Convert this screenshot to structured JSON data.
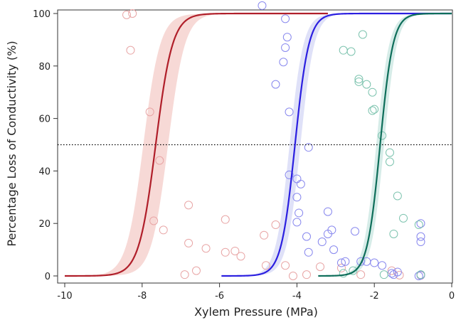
{
  "chart_data": {
    "type": "scatter",
    "title": "",
    "xlabel": "Xylem Pressure (MPa)",
    "ylabel": "Percentage Loss of Conductivity (%)",
    "xlim": [
      -10,
      0
    ],
    "ylim": [
      0,
      100
    ],
    "x_ticks": [
      -10,
      -8,
      -6,
      -4,
      -2,
      0
    ],
    "y_ticks": [
      0,
      20,
      40,
      60,
      80,
      100
    ],
    "grid": false,
    "legend": "none",
    "reference_line": {
      "y": 50,
      "style": "dotted",
      "color": "#000000"
    },
    "series": [
      {
        "color": "#b01f2a",
        "band_color": "#f6d2cf",
        "point_color": "#e8a5a5",
        "curve": {
          "x_start": -10,
          "x_end": -3.2,
          "p50": -7.65,
          "slope": 4.6
        },
        "band_width": 0.32,
        "points": [
          [
            -8.4,
            99.5
          ],
          [
            -8.25,
            100
          ],
          [
            -8.3,
            86
          ],
          [
            -7.8,
            62.5
          ],
          [
            -7.7,
            21
          ],
          [
            -7.55,
            44
          ],
          [
            -7.45,
            17.5
          ],
          [
            -6.9,
            0.5
          ],
          [
            -6.8,
            27
          ],
          [
            -6.8,
            12.5
          ],
          [
            -6.6,
            2
          ],
          [
            -6.35,
            10.5
          ],
          [
            -5.85,
            21.5
          ],
          [
            -5.85,
            9
          ],
          [
            -5.6,
            9.5
          ],
          [
            -5.45,
            7.5
          ],
          [
            -4.85,
            15.5
          ],
          [
            -4.8,
            4
          ],
          [
            -4.55,
            19.5
          ],
          [
            -4.3,
            4
          ],
          [
            -4.1,
            0
          ],
          [
            -3.75,
            0.5
          ],
          [
            -3.4,
            3.5
          ],
          [
            -2.85,
            3
          ],
          [
            -2.35,
            0.5
          ],
          [
            -1.55,
            2
          ],
          [
            -1.35,
            0.3
          ],
          [
            -0.8,
            0.2
          ]
        ]
      },
      {
        "color": "#2b1fe0",
        "band_color": "#d9dcf7",
        "point_color": "#8888ee",
        "curve": {
          "x_start": -5.95,
          "x_end": 0,
          "p50": -4.05,
          "slope": 5.6
        },
        "band_width": 0.14,
        "points": [
          [
            -4.9,
            103
          ],
          [
            -4.3,
            98
          ],
          [
            -4.25,
            91
          ],
          [
            -4.3,
            87
          ],
          [
            -4.35,
            81.5
          ],
          [
            -4.55,
            73
          ],
          [
            -4.2,
            62.5
          ],
          [
            -4.2,
            38.5
          ],
          [
            -4.0,
            37
          ],
          [
            -3.9,
            35
          ],
          [
            -3.7,
            49
          ],
          [
            -4.0,
            30
          ],
          [
            -3.95,
            24
          ],
          [
            -4.0,
            20.5
          ],
          [
            -3.2,
            24.5
          ],
          [
            -3.1,
            17.5
          ],
          [
            -3.2,
            16
          ],
          [
            -2.5,
            17
          ],
          [
            -3.75,
            15
          ],
          [
            -3.7,
            9
          ],
          [
            -3.35,
            13
          ],
          [
            -3.05,
            10
          ],
          [
            -2.85,
            5
          ],
          [
            -2.75,
            5.5
          ],
          [
            -2.35,
            5.5
          ],
          [
            -2.2,
            5.5
          ],
          [
            -2.0,
            5
          ],
          [
            -1.8,
            4
          ],
          [
            -1.55,
            1
          ],
          [
            -1.4,
            1.5
          ],
          [
            -1.5,
            0.5
          ],
          [
            -0.8,
            20
          ],
          [
            -0.8,
            15
          ],
          [
            -0.8,
            13
          ],
          [
            -0.8,
            0.3
          ],
          [
            -0.85,
            0
          ]
        ]
      },
      {
        "color": "#0e6e5a",
        "band_color": "#cfe9e4",
        "point_color": "#7cc3ae",
        "curve": {
          "x_start": -3.45,
          "x_end": 0,
          "p50": -1.85,
          "slope": 6.0
        },
        "band_width": 0.1,
        "points": [
          [
            -2.3,
            92
          ],
          [
            -2.8,
            86
          ],
          [
            -2.6,
            85.5
          ],
          [
            -2.4,
            75
          ],
          [
            -2.4,
            74
          ],
          [
            -2.2,
            73
          ],
          [
            -2.05,
            70
          ],
          [
            -2.0,
            63.5
          ],
          [
            -2.05,
            63
          ],
          [
            -1.8,
            53.5
          ],
          [
            -1.6,
            47
          ],
          [
            -1.6,
            43.5
          ],
          [
            -1.4,
            30.5
          ],
          [
            -1.25,
            22
          ],
          [
            -1.5,
            16
          ],
          [
            -2.8,
            1
          ],
          [
            -2.55,
            2
          ],
          [
            -1.75,
            0.5
          ],
          [
            -0.85,
            19.5
          ],
          [
            -0.8,
            0.5
          ]
        ]
      }
    ]
  }
}
